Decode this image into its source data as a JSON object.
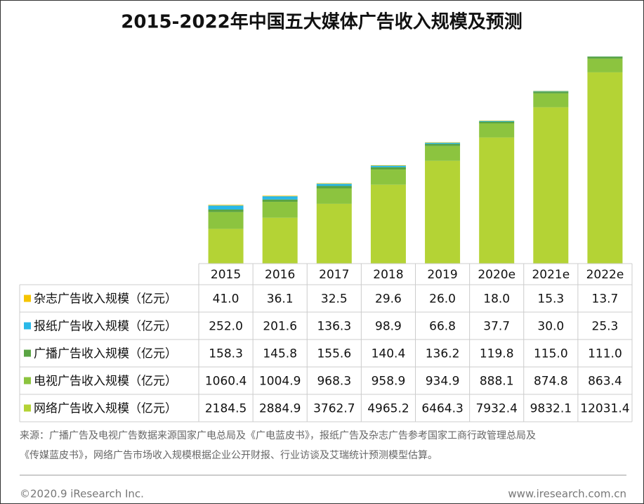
{
  "chart_data": {
    "type": "bar",
    "stacked": true,
    "title": "2015-2022年中国五大媒体广告收入规模及预测",
    "categories": [
      "2015",
      "2016",
      "2017",
      "2018",
      "2019",
      "2020e",
      "2021e",
      "2022e"
    ],
    "series": [
      {
        "name": "杂志广告收入规模（亿元）",
        "color": "#f5c400",
        "values": [
          41.0,
          36.1,
          32.5,
          29.6,
          26.0,
          18.0,
          15.3,
          13.7
        ],
        "value_labels": [
          "41.0",
          "36.1",
          "32.5",
          "29.6",
          "26.0",
          "18.0",
          "15.3",
          "13.7"
        ]
      },
      {
        "name": "报纸广告收入规模（亿元）",
        "color": "#29b8e8",
        "values": [
          252.0,
          201.6,
          136.3,
          98.9,
          66.8,
          37.7,
          30.0,
          25.3
        ],
        "value_labels": [
          "252.0",
          "201.6",
          "136.3",
          "98.9",
          "66.8",
          "37.7",
          "30.0",
          "25.3"
        ]
      },
      {
        "name": "广播广告收入规模（亿元）",
        "color": "#5aa443",
        "values": [
          158.3,
          145.8,
          155.6,
          140.4,
          136.2,
          119.8,
          115.0,
          111.0
        ],
        "value_labels": [
          "158.3",
          "145.8",
          "155.6",
          "140.4",
          "136.2",
          "119.8",
          "115.0",
          "111.0"
        ]
      },
      {
        "name": "电视广告收入规模（亿元）",
        "color": "#8cc43f",
        "values": [
          1060.4,
          1004.9,
          968.3,
          958.9,
          934.9,
          888.1,
          874.8,
          863.4
        ],
        "value_labels": [
          "1060.4",
          "1004.9",
          "968.3",
          "958.9",
          "934.9",
          "888.1",
          "874.8",
          "863.4"
        ]
      },
      {
        "name": "网络广告收入规模（亿元）",
        "color": "#b4d335",
        "values": [
          2184.5,
          2884.9,
          3762.7,
          4965.2,
          6464.3,
          7932.4,
          9832.1,
          12031.4
        ],
        "value_labels": [
          "2184.5",
          "2884.9",
          "3762.7",
          "4965.2",
          "6464.3",
          "7932.4",
          "9832.1",
          "12031.4"
        ]
      }
    ]
  },
  "source": [
    "来源：广播广告及电视广告数据来源国家广电总局及《广电蓝皮书》，报纸广告及杂志广告参考国家工商行政管理总局及",
    "《传媒蓝皮书》，网络广告市场收入规模根据企业公开财报、行业访谈及艾瑞统计预测模型估算。"
  ],
  "footer": {
    "left": "©2020.9 iResearch Inc.",
    "right": "www.iresearch.com.cn"
  }
}
